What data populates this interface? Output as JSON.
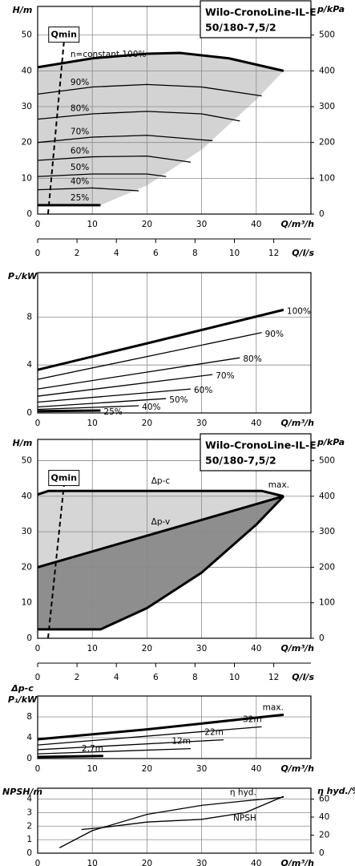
{
  "chart_data": [
    {
      "type": "line",
      "title": "Wilo-CronoLine-IL-E",
      "subtitle": "50/180-7,5/2",
      "y_label": "H/m",
      "y2_label": "p/kPa",
      "x_label": "Q/m³/h",
      "x2_label": "Q/l/s",
      "xlim": [
        0,
        50
      ],
      "xticks": [
        0,
        10,
        20,
        30,
        40
      ],
      "x2lim": [
        0,
        13.89
      ],
      "x2ticks": [
        0,
        2,
        4,
        6,
        8,
        10,
        12
      ],
      "ylim": [
        0,
        58
      ],
      "yticks": [
        0,
        10,
        20,
        30,
        40,
        50
      ],
      "y2lim": [
        0,
        580
      ],
      "y2ticks": [
        0,
        100,
        200,
        300,
        400,
        500
      ],
      "grid": true,
      "qmin": {
        "label": "Qmin",
        "x": [
          1.9,
          4.8
        ],
        "values": [
          0,
          48
        ]
      },
      "areas": [
        {
          "color": "#d3d3d3",
          "x": [
            0,
            0,
            11.5,
            20,
            30,
            40,
            45,
            35,
            26,
            20,
            10,
            0
          ],
          "values": [
            41,
            2.5,
            2.5,
            8,
            18,
            32,
            40,
            43.5,
            45,
            44.8,
            43.5,
            41
          ]
        }
      ],
      "series": [
        {
          "name": "n=constant 100%",
          "color": "#000",
          "style": "bold",
          "label": "start",
          "x": [
            0,
            10,
            20,
            26,
            35,
            45
          ],
          "values": [
            41,
            43.5,
            44.8,
            45,
            43.5,
            40
          ]
        },
        {
          "name": "90%",
          "color": "#000",
          "style": "thin",
          "label": "start",
          "x": [
            0,
            10,
            20,
            30,
            41
          ],
          "values": [
            33.5,
            35.5,
            36.2,
            35.5,
            33
          ]
        },
        {
          "name": "80%",
          "color": "#000",
          "style": "thin",
          "label": "start",
          "x": [
            0,
            10,
            20,
            30,
            37
          ],
          "values": [
            26.5,
            28,
            28.7,
            28,
            26
          ]
        },
        {
          "name": "70%",
          "color": "#000",
          "style": "thin",
          "label": "start",
          "x": [
            0,
            10,
            20,
            32
          ],
          "values": [
            20,
            21.5,
            22,
            20.5
          ]
        },
        {
          "name": "60%",
          "color": "#000",
          "style": "thin",
          "label": "start",
          "x": [
            0,
            10,
            20,
            28
          ],
          "values": [
            15,
            16,
            16.2,
            14.5
          ]
        },
        {
          "name": "50%",
          "color": "#000",
          "style": "thin",
          "label": "start",
          "x": [
            0,
            10,
            20,
            23.5
          ],
          "values": [
            10.5,
            11.2,
            11.2,
            10.5
          ]
        },
        {
          "name": "40%",
          "color": "#000",
          "style": "thin",
          "label": "start",
          "x": [
            0,
            10,
            18.5
          ],
          "values": [
            6.8,
            7.3,
            6.5
          ]
        },
        {
          "name": "25%",
          "color": "#000",
          "style": "bold",
          "label": "start",
          "x": [
            0,
            11.5
          ],
          "values": [
            2.5,
            2.5
          ]
        }
      ]
    },
    {
      "type": "line",
      "y_label": "P₁/kW",
      "x_label": "Q/m³/h",
      "xlim": [
        0,
        50
      ],
      "xticks": [
        0,
        10,
        20,
        30,
        40
      ],
      "ylim": [
        0,
        11.7
      ],
      "yticks": [
        0,
        4,
        8
      ],
      "grid": true,
      "series": [
        {
          "name": "100%",
          "color": "#000",
          "style": "bold",
          "label": "end",
          "x": [
            0,
            20,
            45
          ],
          "values": [
            3.6,
            5.8,
            8.6
          ]
        },
        {
          "name": "90%",
          "color": "#000",
          "style": "thin",
          "label": "end",
          "x": [
            0,
            41
          ],
          "values": [
            2.8,
            6.7
          ]
        },
        {
          "name": "80%",
          "color": "#000",
          "style": "thin",
          "label": "end",
          "x": [
            0,
            37
          ],
          "values": [
            2,
            4.6
          ]
        },
        {
          "name": "70%",
          "color": "#000",
          "style": "thin",
          "label": "end",
          "x": [
            0,
            32
          ],
          "values": [
            1.4,
            3.2
          ]
        },
        {
          "name": "60%",
          "color": "#000",
          "style": "thin",
          "label": "end",
          "x": [
            0,
            28
          ],
          "values": [
            0.9,
            2
          ]
        },
        {
          "name": "50%",
          "color": "#000",
          "style": "thin",
          "label": "end",
          "x": [
            0,
            23.5
          ],
          "values": [
            0.5,
            1.2
          ]
        },
        {
          "name": "40%",
          "color": "#000",
          "style": "thin",
          "label": "end",
          "x": [
            0,
            18.5
          ],
          "values": [
            0.3,
            0.6
          ]
        },
        {
          "name": "25%",
          "color": "#000",
          "style": "bold",
          "label": "end",
          "x": [
            0,
            11.5
          ],
          "values": [
            0.15,
            0.2
          ]
        }
      ]
    },
    {
      "type": "line",
      "title": "Wilo-CronoLine-IL-E",
      "subtitle": "50/180-7,5/2",
      "y_label": "H/m",
      "y2_label": "p/kPa",
      "x_label": "Q/m³/h",
      "x2_label": "Q/l/s",
      "xlim": [
        0,
        50
      ],
      "xticks": [
        0,
        10,
        20,
        30,
        40
      ],
      "x2lim": [
        0,
        13.89
      ],
      "x2ticks": [
        0,
        2,
        4,
        6,
        8,
        10,
        12
      ],
      "ylim": [
        0,
        56
      ],
      "yticks": [
        0,
        10,
        20,
        30,
        40,
        50
      ],
      "y2lim": [
        0,
        560
      ],
      "y2ticks": [
        0,
        100,
        200,
        300,
        400,
        500
      ],
      "grid": true,
      "qmin": {
        "label": "Qmin",
        "x": [
          1.9,
          4.8
        ],
        "values": [
          0,
          43
        ]
      },
      "annotation": "max.",
      "areas": [
        {
          "color": "#d6d6d6",
          "x": [
            0,
            2,
            41,
            45,
            0
          ],
          "values": [
            40.5,
            41.5,
            41.5,
            40,
            20
          ]
        },
        {
          "color": "#8e8e8e",
          "x": [
            0,
            45,
            40,
            30,
            20,
            11.5,
            0
          ],
          "values": [
            20,
            40,
            32,
            18.5,
            8.5,
            2.5,
            2.5
          ]
        }
      ],
      "series": [
        {
          "name": "Δp-c",
          "color": "#000",
          "style": "bold",
          "label": "mid",
          "x": [
            0,
            2,
            41,
            45
          ],
          "values": [
            40.5,
            41.5,
            41.5,
            40
          ]
        },
        {
          "name": "Δp-v",
          "color": "#000",
          "style": "bold",
          "label": "mid",
          "x": [
            0,
            45
          ],
          "values": [
            20,
            40
          ]
        },
        {
          "color": "#000",
          "style": "bold",
          "x": [
            0,
            11.5,
            20,
            30,
            40,
            45
          ],
          "values": [
            2.5,
            2.5,
            8.5,
            18.5,
            32,
            40
          ]
        }
      ]
    },
    {
      "type": "line",
      "mode_label": "Δp-c",
      "y_label": "P₁/kW",
      "x_label": "Q/m³/h",
      "xlim": [
        0,
        50
      ],
      "xticks": [
        0,
        10,
        20,
        30,
        40
      ],
      "ylim": [
        0,
        12
      ],
      "yticks": [
        0,
        4,
        8
      ],
      "grid": true,
      "series": [
        {
          "name": "max.",
          "color": "#000",
          "style": "bold",
          "label": "end-above",
          "x": [
            0,
            20,
            45
          ],
          "values": [
            3.7,
            5.6,
            8.4
          ]
        },
        {
          "name": "32m",
          "color": "#000",
          "style": "thin",
          "label": "end-above",
          "x": [
            0,
            41
          ],
          "values": [
            2.6,
            6.1
          ]
        },
        {
          "name": "22m",
          "color": "#000",
          "style": "thin",
          "label": "end-above",
          "x": [
            0,
            34
          ],
          "values": [
            1.7,
            3.6
          ]
        },
        {
          "name": "12m",
          "color": "#000",
          "style": "thin",
          "label": "end-above",
          "x": [
            0,
            28
          ],
          "values": [
            0.9,
            1.9
          ]
        },
        {
          "name": "2,7m",
          "color": "#000",
          "style": "bold",
          "label": "end-above",
          "x": [
            0,
            12
          ],
          "values": [
            0.3,
            0.5
          ]
        }
      ]
    },
    {
      "type": "line",
      "y_label": "NPSH/m",
      "y2_label": "η hyd./%",
      "x_label": "Q/m³/h",
      "xlim": [
        0,
        50
      ],
      "xticks": [
        0,
        10,
        20,
        30,
        40
      ],
      "ylim": [
        0,
        4.8
      ],
      "yticks": [
        0,
        1,
        2,
        3,
        4
      ],
      "y2lim": [
        0,
        72
      ],
      "y2ticks": [
        0,
        20,
        40,
        60
      ],
      "grid": true,
      "series": [
        {
          "name": "NPSH",
          "color": "#000",
          "style": "thin",
          "label": "before-end-below",
          "x": [
            8,
            12,
            20,
            30,
            38,
            45
          ],
          "values": [
            1.75,
            1.9,
            2.3,
            2.5,
            3,
            4.2
          ]
        },
        {
          "name": "η hyd.",
          "color": "#000",
          "style": "thin",
          "axis": "y2",
          "label": "before-end-above",
          "x": [
            4,
            10,
            20,
            30,
            38,
            45
          ],
          "values": [
            6,
            25,
            43,
            53,
            58,
            62
          ]
        }
      ]
    }
  ]
}
